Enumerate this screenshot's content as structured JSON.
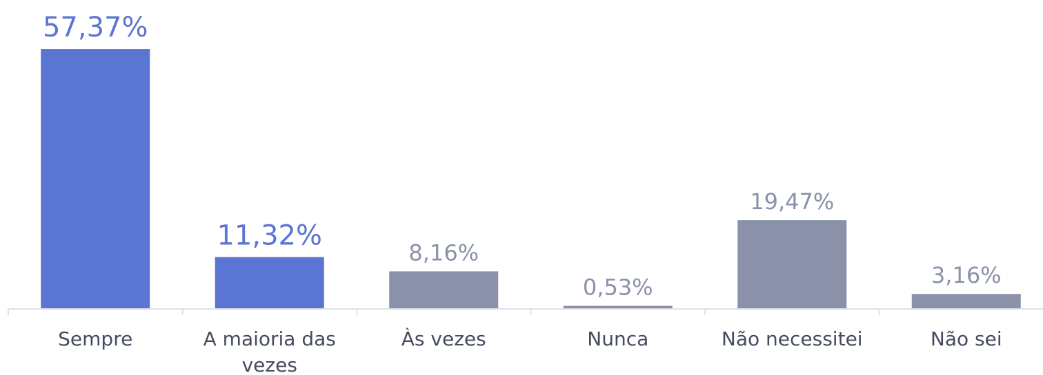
{
  "chart_data": {
    "type": "bar",
    "categories": [
      "Sempre",
      "A maioria das vezes",
      "Às vezes",
      "Nunca",
      "Não necessitei",
      "Não sei"
    ],
    "values": [
      57.37,
      11.32,
      8.16,
      0.53,
      19.47,
      3.16
    ],
    "value_labels": [
      "57,37%",
      "11,32%",
      "8,16%",
      "0,53%",
      "19,47%",
      "3,16%"
    ],
    "colors": [
      "#5b75d3",
      "#5b75d3",
      "#8a91a8",
      "#8a91a8",
      "#8a91a8",
      "#8a91a8"
    ]
  }
}
